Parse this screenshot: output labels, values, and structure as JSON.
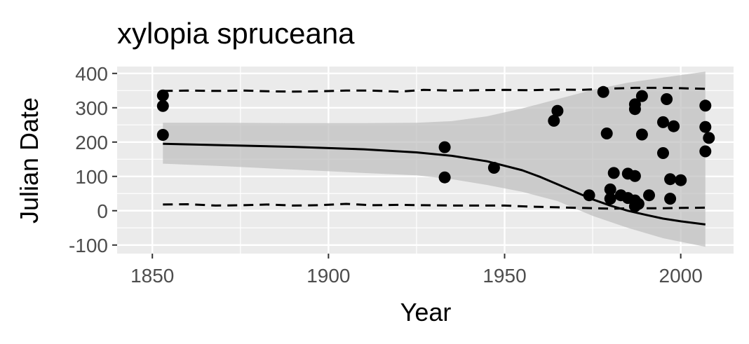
{
  "chart_data": {
    "type": "scatter",
    "title": "xylopia spruceana",
    "xlabel": "Year",
    "ylabel": "Julian Date",
    "xlim": [
      1840,
      2015
    ],
    "ylim": [
      -125,
      420
    ],
    "x_ticks": [
      1850,
      1900,
      1950,
      2000
    ],
    "y_ticks": [
      -100,
      0,
      100,
      200,
      300,
      400
    ],
    "x_tick_labels": [
      "1850",
      "1900",
      "1950",
      "2000"
    ],
    "y_tick_labels": [
      "-100",
      "0",
      "100",
      "200",
      "300",
      "400"
    ],
    "grid": true,
    "legend": "none",
    "colors": {
      "panel": "#ebebeb",
      "grid": "#ffffff",
      "ribbon": "#bdbdbd",
      "line": "#000000",
      "points": "#000000",
      "tick_text": "#4d4d4d"
    },
    "points": [
      {
        "x": 1853,
        "y": 336
      },
      {
        "x": 1853,
        "y": 305
      },
      {
        "x": 1853,
        "y": 221
      },
      {
        "x": 1933,
        "y": 185
      },
      {
        "x": 1933,
        "y": 97
      },
      {
        "x": 1947,
        "y": 125
      },
      {
        "x": 1964,
        "y": 262
      },
      {
        "x": 1965,
        "y": 291
      },
      {
        "x": 1974,
        "y": 45
      },
      {
        "x": 1978,
        "y": 346
      },
      {
        "x": 1979,
        "y": 225
      },
      {
        "x": 1980,
        "y": 62
      },
      {
        "x": 1980,
        "y": 35
      },
      {
        "x": 1981,
        "y": 110
      },
      {
        "x": 1983,
        "y": 45
      },
      {
        "x": 1985,
        "y": 108
      },
      {
        "x": 1985,
        "y": 37
      },
      {
        "x": 1987,
        "y": 310
      },
      {
        "x": 1987,
        "y": 296
      },
      {
        "x": 1987,
        "y": 101
      },
      {
        "x": 1987,
        "y": 30
      },
      {
        "x": 1987,
        "y": 13
      },
      {
        "x": 1988,
        "y": 20
      },
      {
        "x": 1989,
        "y": 334
      },
      {
        "x": 1989,
        "y": 222
      },
      {
        "x": 1991,
        "y": 45
      },
      {
        "x": 1995,
        "y": 258
      },
      {
        "x": 1995,
        "y": 168
      },
      {
        "x": 1996,
        "y": 325
      },
      {
        "x": 1997,
        "y": 92
      },
      {
        "x": 1997,
        "y": 35
      },
      {
        "x": 1998,
        "y": 246
      },
      {
        "x": 2000,
        "y": 89
      },
      {
        "x": 2007,
        "y": 306
      },
      {
        "x": 2007,
        "y": 244
      },
      {
        "x": 2007,
        "y": 173
      },
      {
        "x": 2008,
        "y": 212
      }
    ],
    "fit_line": {
      "x": [
        1853,
        1870,
        1890,
        1910,
        1925,
        1935,
        1945,
        1955,
        1960,
        1965,
        1970,
        1975,
        1980,
        1985,
        1990,
        1995,
        2000,
        2007
      ],
      "y": [
        195,
        191,
        186,
        179,
        170,
        160,
        144,
        118,
        99,
        77,
        55,
        33,
        15,
        0,
        -12,
        -23,
        -31,
        -40
      ]
    },
    "ribbon": {
      "x": [
        1853,
        1870,
        1890,
        1910,
        1925,
        1935,
        1945,
        1955,
        1965,
        1975,
        1985,
        1995,
        2007
      ],
      "upper": [
        256,
        256,
        255,
        255,
        256,
        261,
        275,
        298,
        325,
        352,
        373,
        388,
        405
      ],
      "lower": [
        137,
        130,
        120,
        110,
        103,
        92,
        75,
        55,
        28,
        -15,
        -50,
        -80,
        -105
      ]
    },
    "upper_dashed": {
      "x": [
        1853,
        1860,
        1868,
        1876,
        1883,
        1890,
        1897,
        1905,
        1912,
        1920,
        1927,
        1935,
        1942,
        1950,
        1957,
        1965,
        1972,
        1980,
        1987,
        1995,
        2000,
        2007
      ],
      "y": [
        349,
        350,
        349,
        350,
        348,
        347,
        348,
        350,
        350,
        347,
        352,
        350,
        351,
        352,
        351,
        353,
        352,
        356,
        358,
        358,
        357,
        355
      ]
    },
    "lower_dashed": {
      "x": [
        1853,
        1860,
        1868,
        1876,
        1883,
        1890,
        1897,
        1905,
        1912,
        1920,
        1927,
        1935,
        1942,
        1950,
        1957,
        1965,
        1972,
        1980,
        1987,
        1995,
        2000,
        2007
      ],
      "y": [
        18,
        19,
        15,
        16,
        18,
        15,
        16,
        20,
        16,
        17,
        16,
        15,
        15,
        15,
        12,
        10,
        8,
        6,
        7,
        7,
        8,
        9
      ]
    }
  }
}
